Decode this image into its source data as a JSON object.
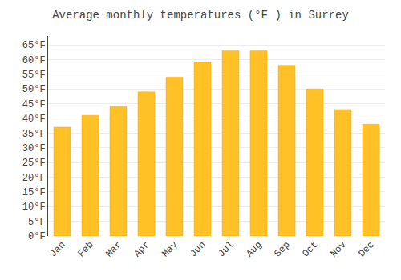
{
  "chart_data": {
    "type": "bar",
    "title": "Average monthly temperatures (°F ) in Surrey",
    "categories": [
      "Jan",
      "Feb",
      "Mar",
      "Apr",
      "May",
      "Jun",
      "Jul",
      "Aug",
      "Sep",
      "Oct",
      "Nov",
      "Dec"
    ],
    "values": [
      37,
      41,
      44,
      49,
      54,
      59,
      63,
      63,
      58,
      50,
      43,
      38
    ],
    "color": "#FFC125",
    "ylim": [
      0,
      68
    ],
    "yticks": [
      {
        "value": 0,
        "label": "0°F"
      },
      {
        "value": 5,
        "label": "5°F"
      },
      {
        "value": 10,
        "label": "10°F"
      },
      {
        "value": 15,
        "label": "15°F"
      },
      {
        "value": 20,
        "label": "20°F"
      },
      {
        "value": 25,
        "label": "25°F"
      },
      {
        "value": 30,
        "label": "30°F"
      },
      {
        "value": 35,
        "label": "35°F"
      },
      {
        "value": 40,
        "label": "40°F"
      },
      {
        "value": 45,
        "label": "45°F"
      },
      {
        "value": 50,
        "label": "50°F"
      },
      {
        "value": 55,
        "label": "55°F"
      },
      {
        "value": 60,
        "label": "60°F"
      },
      {
        "value": 65,
        "label": "65°F"
      }
    ],
    "grid": true
  }
}
